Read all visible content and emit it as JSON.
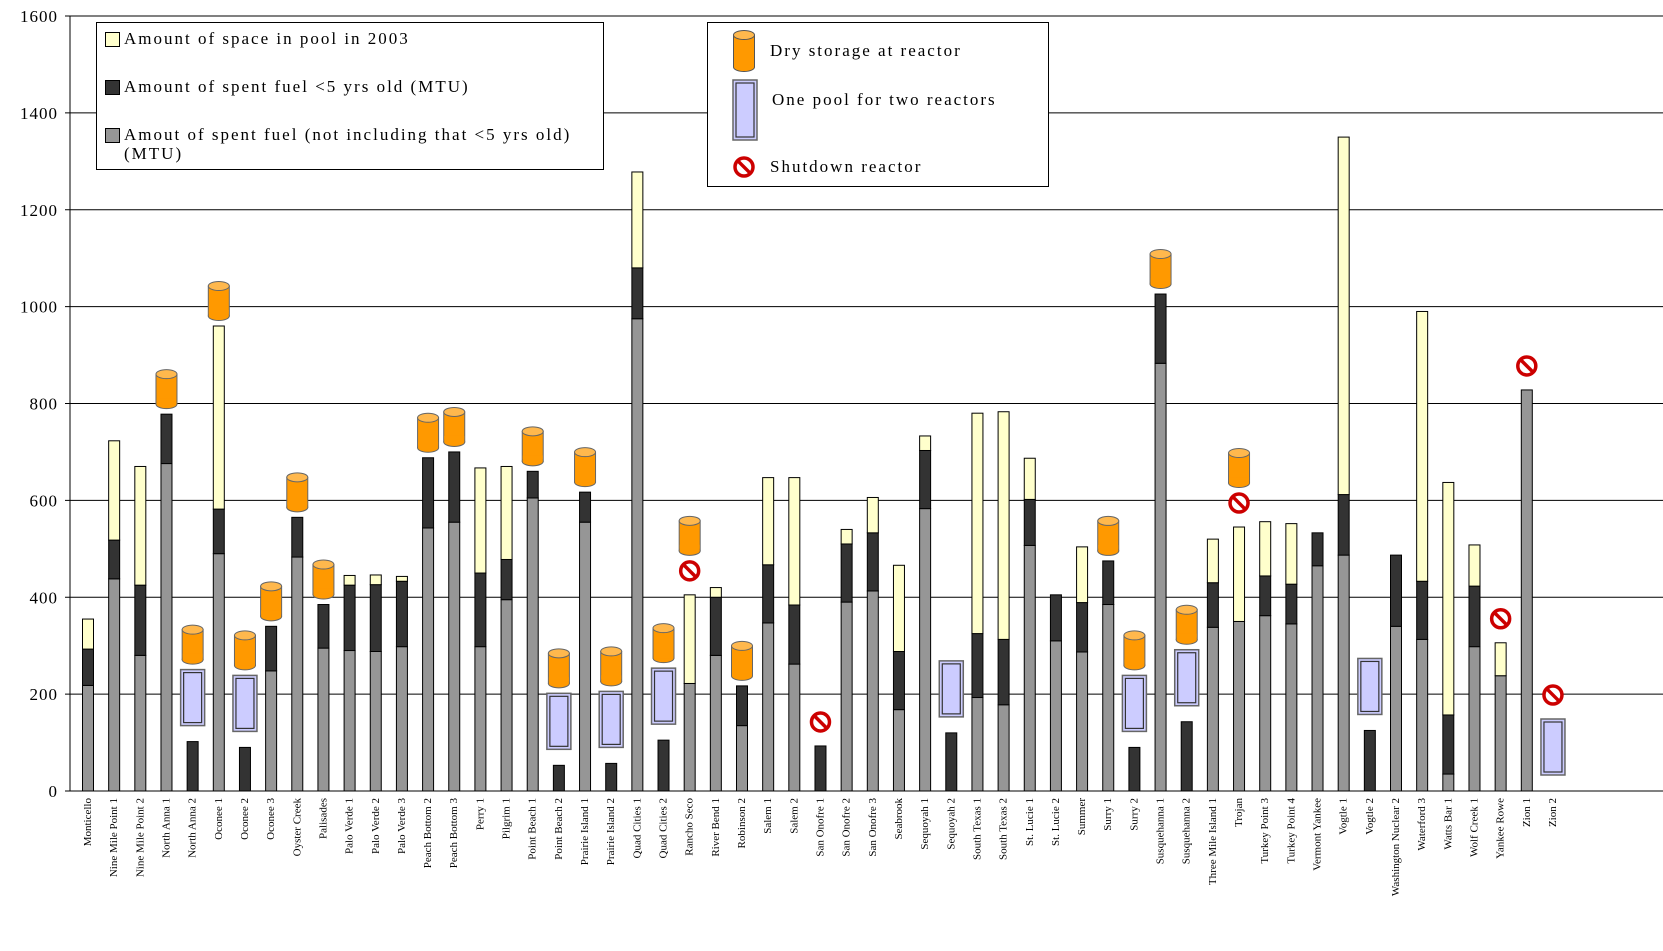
{
  "colors": {
    "space": "#ffffcc",
    "recent": "#333333",
    "older": "#969696",
    "dry": "#ff9900",
    "pool": "#ccccff",
    "shutdown": "#cc0000"
  },
  "legend": {
    "space": "Amount of space in pool in 2003",
    "recent": "Amount of spent fuel <5 yrs old (MTU)",
    "older_line1": "Amout of spent fuel (not including that <5 yrs old)",
    "older_line2": "(MTU)",
    "dry": "Dry storage at reactor",
    "pool": "One pool for two reactors",
    "shutdown": "Shutdown reactor"
  },
  "chart_data": {
    "type": "bar",
    "stacked": true,
    "ylim": [
      0,
      1600
    ],
    "yticks": [
      0,
      200,
      400,
      600,
      800,
      1000,
      1200,
      1400,
      1600
    ],
    "grid": true,
    "categories": [
      "Monticello",
      "Nine Mile Point 1",
      "Nine Mile Point 2",
      "North Anna 1",
      "North Anna 2",
      "Oconee 1",
      "Oconee 2",
      "Oconee 3",
      "Oyster Creek",
      "Palisades",
      "Palo Verde 1",
      "Palo Verde 2",
      "Palo Verde 3",
      "Peach Bottom 2",
      "Peach Bottom 3",
      "Perry 1",
      "Pilgrim 1",
      "Point Beach 1",
      "Point Beach 2",
      "Prairie Island 1",
      "Prairie Island 2",
      "Quad Cities 1",
      "Quad Cities 2",
      "Rancho Seco",
      "River Bend 1",
      "Robinson 2",
      "Salem 1",
      "Salem 2",
      "San Onofre 1",
      "San Onofre 2",
      "San Onofre 3",
      "Seabrook",
      "Sequoyah 1",
      "Sequoyah 2",
      "South Texas 1",
      "South Texas 2",
      "St. Lucie 1",
      "St. Lucie 2",
      "Summer",
      "Surry 1",
      "Surry 2",
      "Susquehanna 1",
      "Susquehanna 2",
      "Three Mile Island 1",
      "Trojan",
      "Turkey Point 3",
      "Turkey Point 4",
      "Vermont Yankee",
      "Vogtle 1",
      "Vogtle 2",
      "Washington Nuclear 2",
      "Waterford 3",
      "Watts Bar 1",
      "Wolf Creek 1",
      "Yankee Rowe",
      "Zion 1",
      "Zion 2"
    ],
    "series": [
      {
        "name": "Amout of spent fuel (not including that <5 yrs old) (MTU)",
        "values": [
          218,
          438,
          280,
          676,
          0,
          490,
          0,
          248,
          483,
          295,
          290,
          288,
          298,
          543,
          555,
          298,
          395,
          605,
          0,
          555,
          0,
          975,
          0,
          222,
          280,
          135,
          347,
          262,
          0,
          390,
          413,
          168,
          583,
          0,
          193,
          178,
          507,
          310,
          287,
          385,
          0,
          883,
          0,
          338,
          350,
          362,
          345,
          465,
          487,
          0,
          340,
          313,
          35,
          298,
          238,
          828,
          0
        ]
      },
      {
        "name": "Amount of spent fuel <5 yrs old (MTU)",
        "values": [
          75,
          80,
          145,
          102,
          102,
          92,
          90,
          92,
          82,
          90,
          135,
          138,
          135,
          145,
          145,
          152,
          83,
          55,
          53,
          62,
          57,
          105,
          105,
          0,
          120,
          82,
          120,
          122,
          93,
          120,
          120,
          120,
          120,
          120,
          132,
          135,
          95,
          95,
          102,
          90,
          90,
          143,
          143,
          92,
          0,
          82,
          82,
          68,
          125,
          125,
          147,
          120,
          122,
          125,
          0,
          0,
          0
        ]
      },
      {
        "name": "Amount of space in pool in 2003",
        "values": [
          62,
          205,
          245,
          0,
          0,
          378,
          0,
          0,
          0,
          0,
          20,
          20,
          10,
          0,
          0,
          217,
          192,
          0,
          0,
          0,
          0,
          198,
          0,
          183,
          20,
          0,
          180,
          263,
          0,
          30,
          73,
          178,
          30,
          0,
          455,
          470,
          85,
          0,
          115,
          0,
          0,
          0,
          0,
          90,
          195,
          112,
          125,
          0,
          738,
          0,
          0,
          557,
          480,
          85,
          68,
          0,
          0
        ]
      }
    ],
    "dry_storage": [
      "North Anna 1",
      "North Anna 2",
      "Oconee 1",
      "Oconee 2",
      "Oconee 3",
      "Oyster Creek",
      "Palisades",
      "Peach Bottom 2",
      "Peach Bottom 3",
      "Point Beach 1",
      "Point Beach 2",
      "Prairie Island 1",
      "Prairie Island 2",
      "Quad Cities 2",
      "Rancho Seco",
      "Robinson 2",
      "Surry 1",
      "Surry 2",
      "Susquehanna 1",
      "Susquehanna 2",
      "Trojan"
    ],
    "shared_pool": [
      "North Anna 2",
      "Oconee 2",
      "Point Beach 2",
      "Prairie Island 2",
      "Quad Cities 2",
      "Sequoyah 2",
      "Surry 2",
      "Susquehanna 2",
      "Vogtle 2",
      "Zion 2"
    ],
    "shutdown": [
      "Rancho Seco",
      "San Onofre 1",
      "Trojan",
      "Yankee Rowe",
      "Zion 1",
      "Zion 2"
    ]
  }
}
